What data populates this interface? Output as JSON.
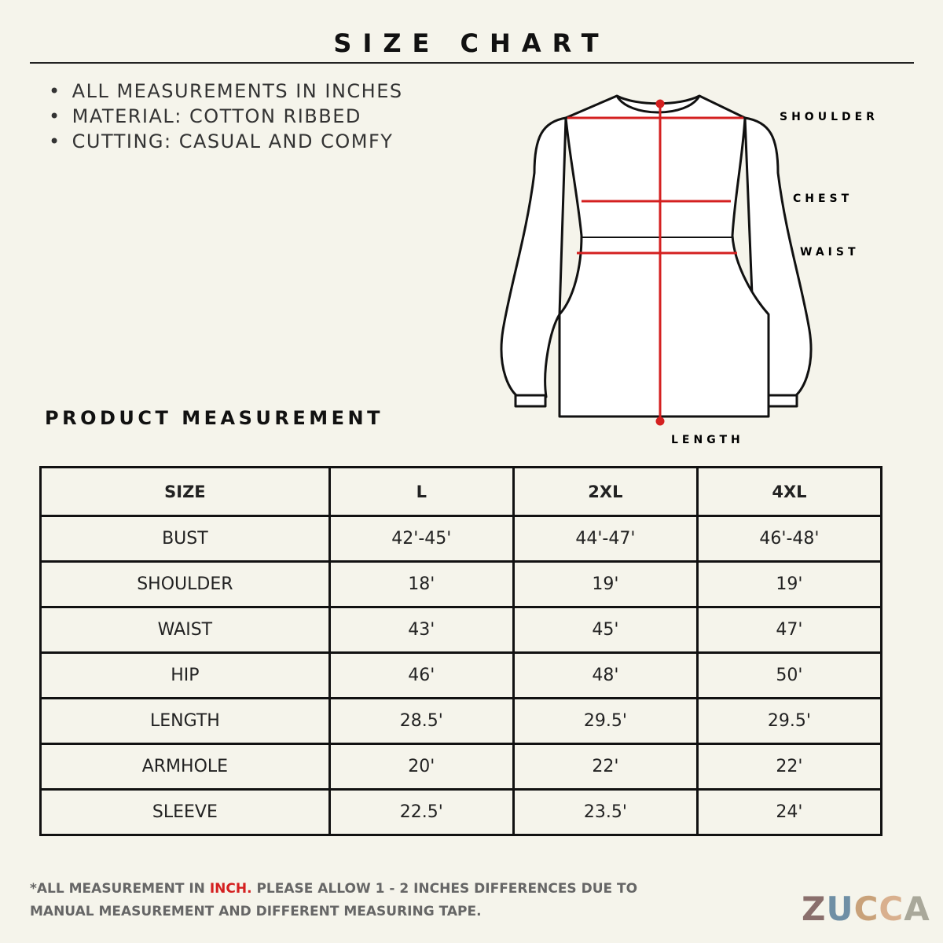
{
  "header": {
    "title": "SIZE CHART"
  },
  "notes": [
    "ALL MEASUREMENTS IN INCHES",
    "MATERIAL: COTTON RIBBED",
    "CUTTING: CASUAL AND COMFY"
  ],
  "diagram": {
    "labels": {
      "shoulder": "SHOULDER",
      "chest": "CHEST",
      "waist": "WAIST",
      "length": "LENGTH"
    }
  },
  "section": {
    "title": "PRODUCT MEASUREMENT"
  },
  "table": {
    "header": [
      "SIZE",
      "L",
      "2XL",
      "4XL"
    ],
    "rows": [
      [
        "BUST",
        "42'-45'",
        "44'-47'",
        "46'-48'"
      ],
      [
        "SHOULDER",
        "18'",
        "19'",
        "19'"
      ],
      [
        "WAIST",
        "43'",
        "45'",
        "47'"
      ],
      [
        "HIP",
        "46'",
        "48'",
        "50'"
      ],
      [
        "LENGTH",
        "28.5'",
        "29.5'",
        "29.5'"
      ],
      [
        "ARMHOLE",
        "20'",
        "22'",
        "22'"
      ],
      [
        "SLEEVE",
        "22.5'",
        "23.5'",
        "24'"
      ]
    ]
  },
  "footer": {
    "prefix": "*ALL MEASUREMENT IN",
    "highlight": "INCH.",
    "rest": "PLEASE ALLOW 1 - 2 INCHES DIFFERENCES DUE TO MANUAL MEASUREMENT AND DIFFERENT MEASURING TAPE."
  },
  "logo": {
    "letters": [
      "Z",
      "U",
      "C",
      "C",
      "A"
    ]
  }
}
